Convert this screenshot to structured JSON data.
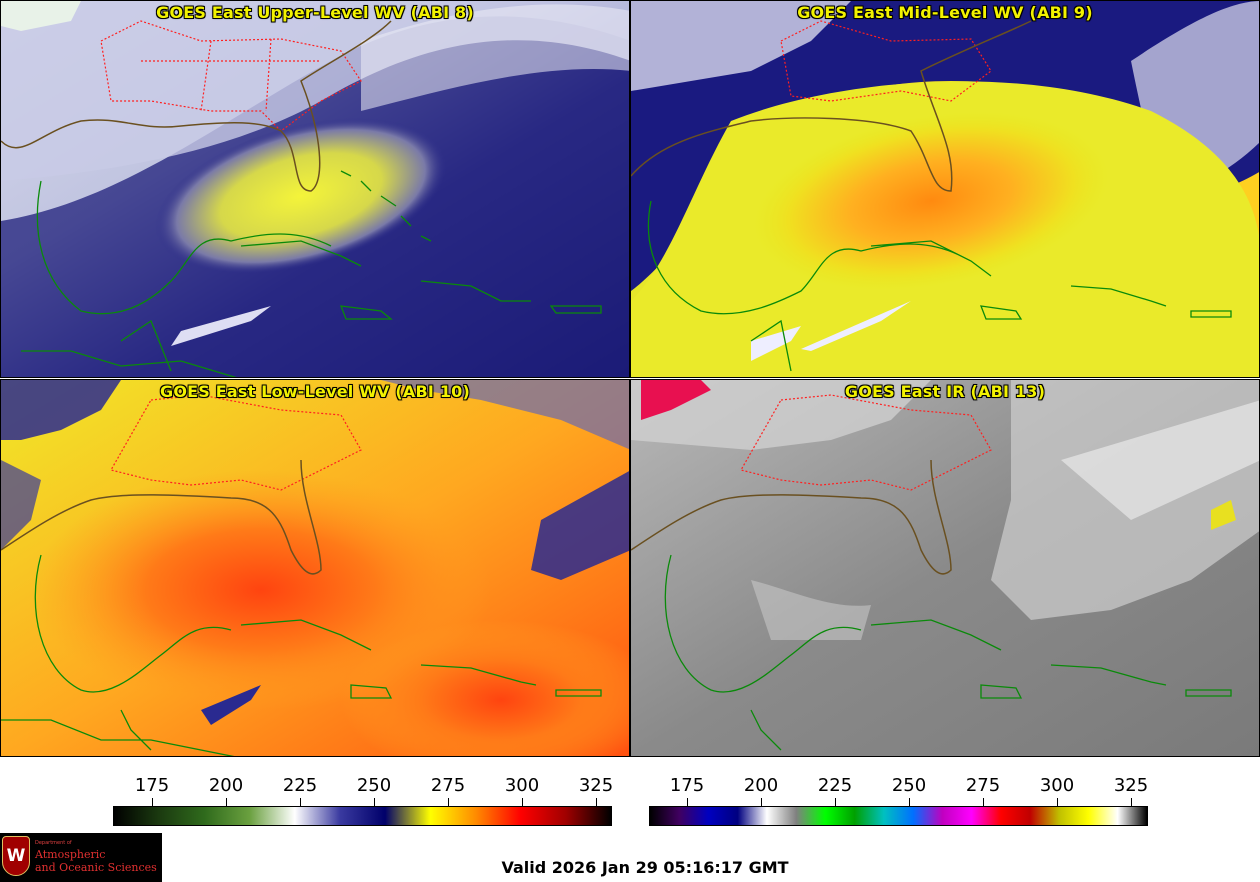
{
  "panels": [
    {
      "id": "p1",
      "title": "GOES East Upper-Level WV (ABI 8)",
      "palette": "wv-upper"
    },
    {
      "id": "p2",
      "title": "GOES East Mid-Level WV (ABI 9)",
      "palette": "wv-mid"
    },
    {
      "id": "p3",
      "title": "GOES East Low-Level WV (ABI 10)",
      "palette": "wv-low"
    },
    {
      "id": "p4",
      "title": "GOES East IR (ABI 13)",
      "palette": "ir"
    }
  ],
  "colorbars": {
    "wv": {
      "ticks": [
        "175",
        "200",
        "225",
        "250",
        "275",
        "300",
        "325"
      ],
      "stops": [
        "#000000",
        "#1b3a10",
        "#2f6a1c",
        "#6aa03f",
        "#ffffff",
        "#3a3aa0",
        "#00006a",
        "#ffff00",
        "#ff8c00",
        "#ff0000",
        "#a00000",
        "#000000"
      ]
    },
    "ir": {
      "ticks": [
        "175",
        "200",
        "225",
        "250",
        "275",
        "300",
        "325"
      ],
      "stops": [
        "#000000",
        "#400060",
        "#0000c0",
        "#000080",
        "#ffffff",
        "#808080",
        "#00ff00",
        "#00a000",
        "#00c0c0",
        "#0070ff",
        "#c000c0",
        "#ff00ff",
        "#ff0000",
        "#c00000",
        "#c0c000",
        "#ffff00",
        "#ffffff",
        "#000000"
      ]
    }
  },
  "footer": {
    "valid_text": "Valid 2026 Jan 29 05:16:17 GMT",
    "logo_dept": "Department of",
    "logo_line1": "Atmospheric",
    "logo_line2": "and Oceanic Sciences",
    "logo_letter": "W"
  },
  "colors": {
    "title": "#f2f200",
    "coastline": "#0a8a0a",
    "state_borders": "#ff2020"
  }
}
